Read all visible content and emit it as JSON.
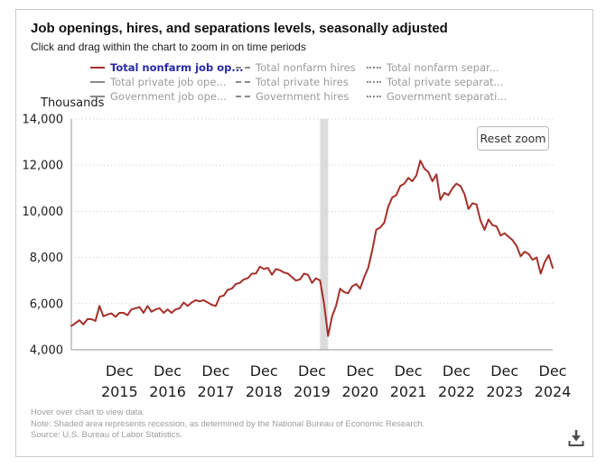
{
  "header": {
    "title": "Job openings, hires, and separations levels, seasonally adjusted",
    "subtitle": "Click and drag within the chart to zoom in on time periods"
  },
  "legend": {
    "items": [
      {
        "label": "Total nonfarm job op...",
        "style": "solid",
        "active": true
      },
      {
        "label": "Total private job ope...",
        "style": "solid",
        "active": false
      },
      {
        "label": "Government job ope...",
        "style": "solid",
        "active": false
      },
      {
        "label": "Total nonfarm hires",
        "style": "dashed",
        "active": false
      },
      {
        "label": "Total private hires",
        "style": "dashed",
        "active": false
      },
      {
        "label": "Government hires",
        "style": "dashed",
        "active": false
      },
      {
        "label": "Total nonfarm separ...",
        "style": "dotted",
        "active": false
      },
      {
        "label": "Total private separat...",
        "style": "dotted",
        "active": false
      },
      {
        "label": "Government separati...",
        "style": "dotted",
        "active": false
      }
    ]
  },
  "chart": {
    "unit_label": "Thousands",
    "reset_button": "Reset zoom"
  },
  "icons": {
    "download": "download-arrow-into-tray"
  },
  "colors": {
    "accent": "#a4302a",
    "legend-active": "#2929a3",
    "legend-text": "#9b9b9b",
    "band": "#dcdcdc",
    "grid": "#cfcfcf",
    "axis": "#9a9a9a"
  },
  "footer": {
    "lines": [
      "Hover over chart to view data.",
      "Note: Shaded area represents recession, as determined by the National Bureau of Economic Research.",
      "Source: U.S. Bureau of Labor Statistics."
    ]
  },
  "chart_data": {
    "type": "line",
    "title": "Job openings, hires, and separations levels, seasonally adjusted",
    "unit": "Thousands",
    "ylim": [
      4000,
      14000
    ],
    "yticks": [
      4000,
      6000,
      8000,
      10000,
      12000,
      14000
    ],
    "xticks": [
      "Dec 2015",
      "Dec 2016",
      "Dec 2017",
      "Dec 2018",
      "Dec 2019",
      "Dec 2020",
      "Dec 2021",
      "Dec 2022",
      "Dec 2023",
      "Dec 2024"
    ],
    "grid": "dotted-horizontal",
    "legend_position": "top",
    "recession_band": {
      "start": "2020-02",
      "end": "2020-04"
    },
    "x": [
      "2014-12",
      "2015-01",
      "2015-02",
      "2015-03",
      "2015-04",
      "2015-05",
      "2015-06",
      "2015-07",
      "2015-08",
      "2015-09",
      "2015-10",
      "2015-11",
      "2015-12",
      "2016-01",
      "2016-02",
      "2016-03",
      "2016-04",
      "2016-05",
      "2016-06",
      "2016-07",
      "2016-08",
      "2016-09",
      "2016-10",
      "2016-11",
      "2016-12",
      "2017-01",
      "2017-02",
      "2017-03",
      "2017-04",
      "2017-05",
      "2017-06",
      "2017-07",
      "2017-08",
      "2017-09",
      "2017-10",
      "2017-11",
      "2017-12",
      "2018-01",
      "2018-02",
      "2018-03",
      "2018-04",
      "2018-05",
      "2018-06",
      "2018-07",
      "2018-08",
      "2018-09",
      "2018-10",
      "2018-11",
      "2018-12",
      "2019-01",
      "2019-02",
      "2019-03",
      "2019-04",
      "2019-05",
      "2019-06",
      "2019-07",
      "2019-08",
      "2019-09",
      "2019-10",
      "2019-11",
      "2019-12",
      "2020-01",
      "2020-02",
      "2020-03",
      "2020-04",
      "2020-05",
      "2020-06",
      "2020-07",
      "2020-08",
      "2020-09",
      "2020-10",
      "2020-11",
      "2020-12",
      "2021-01",
      "2021-02",
      "2021-03",
      "2021-04",
      "2021-05",
      "2021-06",
      "2021-07",
      "2021-08",
      "2021-09",
      "2021-10",
      "2021-11",
      "2021-12",
      "2022-01",
      "2022-02",
      "2022-03",
      "2022-04",
      "2022-05",
      "2022-06",
      "2022-07",
      "2022-08",
      "2022-09",
      "2022-10",
      "2022-11",
      "2022-12",
      "2023-01",
      "2023-02",
      "2023-03",
      "2023-04",
      "2023-05",
      "2023-06",
      "2023-07",
      "2023-08",
      "2023-09",
      "2023-10",
      "2023-11",
      "2023-12",
      "2024-01",
      "2024-02",
      "2024-03",
      "2024-04",
      "2024-05",
      "2024-06",
      "2024-07",
      "2024-08",
      "2024-09",
      "2024-10",
      "2024-11",
      "2024-12"
    ],
    "series": [
      {
        "name": "Total nonfarm job openings",
        "color": "#a4302a",
        "values": [
          5030,
          5150,
          5280,
          5100,
          5330,
          5330,
          5250,
          5900,
          5450,
          5530,
          5580,
          5430,
          5600,
          5600,
          5500,
          5750,
          5800,
          5850,
          5600,
          5900,
          5650,
          5750,
          5800,
          5600,
          5750,
          5600,
          5750,
          5800,
          6050,
          5900,
          6050,
          6150,
          6100,
          6150,
          6050,
          5950,
          5900,
          6300,
          6350,
          6600,
          6650,
          6850,
          6900,
          7050,
          7100,
          7300,
          7300,
          7600,
          7500,
          7550,
          7250,
          7500,
          7450,
          7350,
          7300,
          7150,
          7000,
          7050,
          7300,
          7250,
          6900,
          7100,
          7000,
          6000,
          4600,
          5450,
          5900,
          6650,
          6500,
          6450,
          6750,
          6850,
          6650,
          7150,
          7550,
          8300,
          9200,
          9300,
          9500,
          10200,
          10600,
          10700,
          11100,
          11200,
          11450,
          11300,
          11550,
          12200,
          11850,
          11700,
          11300,
          11600,
          10500,
          10800,
          10700,
          11000,
          11200,
          11100,
          10750,
          10100,
          10350,
          10300,
          9600,
          9200,
          9650,
          9400,
          9350,
          8950,
          9050,
          8900,
          8750,
          8500,
          8050,
          8250,
          8150,
          7900,
          8000,
          7300,
          7800,
          8100,
          7550
        ]
      }
    ]
  }
}
